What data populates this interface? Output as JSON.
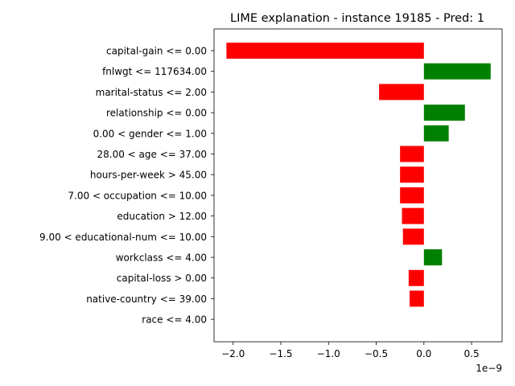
{
  "chart_data": {
    "type": "bar",
    "orientation": "horizontal",
    "title": "LIME explanation - instance 19185 - Pred: 1",
    "xlabel": "",
    "ylabel": "",
    "x_offset_label": "1e−9",
    "xlim": [
      -2.2,
      0.82
    ],
    "x_ticks": [
      -2.0,
      -1.5,
      -1.0,
      -0.5,
      0.0,
      0.5
    ],
    "x_tick_labels": [
      "−2.0",
      "−1.5",
      "−1.0",
      "−0.5",
      "0.0",
      "0.5"
    ],
    "grid": false,
    "legend": "none",
    "positive_color": "#008000",
    "negative_color": "#ff0000",
    "categories": [
      "capital-gain <= 0.00",
      "fnlwgt <= 117634.00",
      "marital-status <= 2.00",
      "relationship <= 0.00",
      "0.00 < gender <= 1.00",
      "28.00 < age <= 37.00",
      "hours-per-week > 45.00",
      "7.00 < occupation <= 10.00",
      "education > 12.00",
      "9.00 < educational-num <= 10.00",
      "workclass <= 4.00",
      "capital-loss > 0.00",
      "native-country <= 39.00",
      "race <= 4.00"
    ],
    "values": [
      -2.07,
      0.7,
      -0.47,
      0.43,
      0.26,
      -0.25,
      -0.25,
      -0.25,
      -0.23,
      -0.22,
      0.19,
      -0.16,
      -0.15,
      0.0
    ]
  }
}
